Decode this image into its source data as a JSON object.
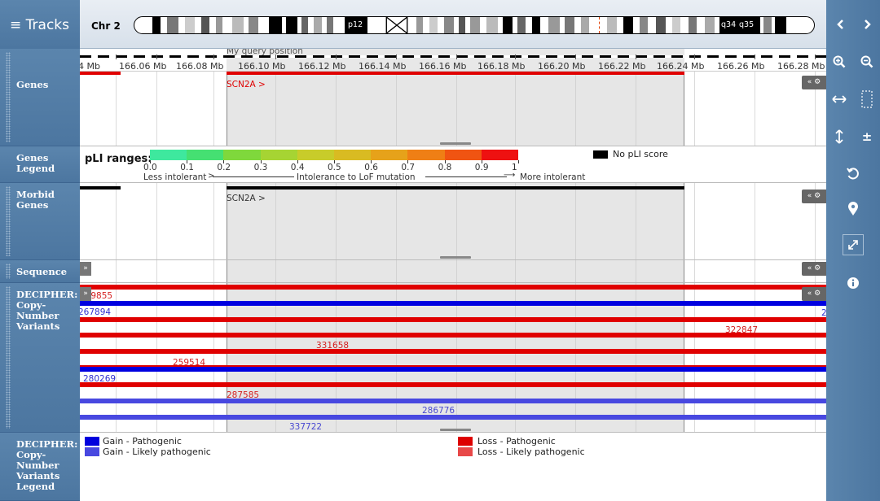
{
  "tracks_button": "≡ Tracks",
  "chromosome": {
    "name": "Chr 2",
    "band_p": "p12",
    "band_q1": "q34",
    "band_q2": "q35"
  },
  "ruler": {
    "query_label": "My query position",
    "ticks": [
      "4 Mb",
      "166.06 Mb",
      "166.08 Mb",
      "166.10 Mb",
      "166.12 Mb",
      "166.14 Mb",
      "166.16 Mb",
      "166.18 Mb",
      "166.20 Mb",
      "166.22 Mb",
      "166.24 Mb",
      "166.26 Mb",
      "166.28 Mb"
    ]
  },
  "labels": {
    "genes": "Genes",
    "genes_legend": "Genes Legend",
    "morbid": "Morbid Genes",
    "sequence": "Sequence",
    "decipher": "DECIPHER: Copy-Number Variants",
    "decipher_legend": "DECIPHER: Copy-Number Variants Legend"
  },
  "genes_track": {
    "gene": "SCN2A >"
  },
  "morbid_track": {
    "gene": "SCN2A >"
  },
  "pli_legend": {
    "title": "pLI ranges:",
    "values": [
      "0.0",
      "0.1",
      "0.2",
      "0.3",
      "0.4",
      "0.5",
      "0.6",
      "0.7",
      "0.8",
      "0.9",
      "1"
    ],
    "colors": [
      "#3ee89e",
      "#45e072",
      "#7fd83c",
      "#a6d433",
      "#c8cc2a",
      "#d9bb22",
      "#e6a21a",
      "#ef7f15",
      "#f05412",
      "#ee1111"
    ],
    "no_score": "No pLI score",
    "less": "Less intolerant",
    "middle": "Intolerance to LoF mutation",
    "more": "More intolerant"
  },
  "badges": {
    "settings": "« ⚙",
    "expand": "»"
  },
  "cnv": [
    {
      "label": "289855",
      "color": "#e00000",
      "label_color": "#d42020"
    },
    {
      "label": "267894",
      "color": "#0000e0",
      "label_color": "#3030d0"
    },
    {
      "label": "",
      "color": "#e00000",
      "label_color": "#d42020"
    },
    {
      "label": "322847",
      "color": "#e00000",
      "label_color": "#d42020"
    },
    {
      "label": "331658",
      "color": "#e00000",
      "label_color": "#d42020"
    },
    {
      "label": "259514",
      "color": "#e00000",
      "label_color": "#d42020"
    },
    {
      "label": "280269",
      "color": "#0000e0",
      "label_color": "#3030d0"
    },
    {
      "label": "287585",
      "color": "#e00000",
      "label_color": "#d42020"
    },
    {
      "label": "286776",
      "color": "#4848e0",
      "label_color": "#4848d0"
    },
    {
      "label": "337722",
      "color": "#4848e0",
      "label_color": "#4848d0"
    }
  ],
  "cnv_legend": {
    "gain_path": "Gain - Pathogenic",
    "gain_likely": "Gain - Likely pathogenic",
    "loss_path": "Loss - Pathogenic",
    "loss_likely": "Loss - Likely pathogenic",
    "gain_path_color": "#0000dd",
    "gain_likely_color": "#4848e0",
    "loss_path_color": "#dd0000",
    "loss_likely_color": "#e84848"
  },
  "right_icons": [
    "chevron-left-icon",
    "chevron-right-icon",
    "zoom-in-icon",
    "zoom-out-icon",
    "drag-horizontal-icon",
    "select-region-icon",
    "drag-vertical-icon",
    "plus-minus-icon",
    "reset-icon",
    "marker-icon",
    "fullscreen-icon",
    "info-icon"
  ]
}
